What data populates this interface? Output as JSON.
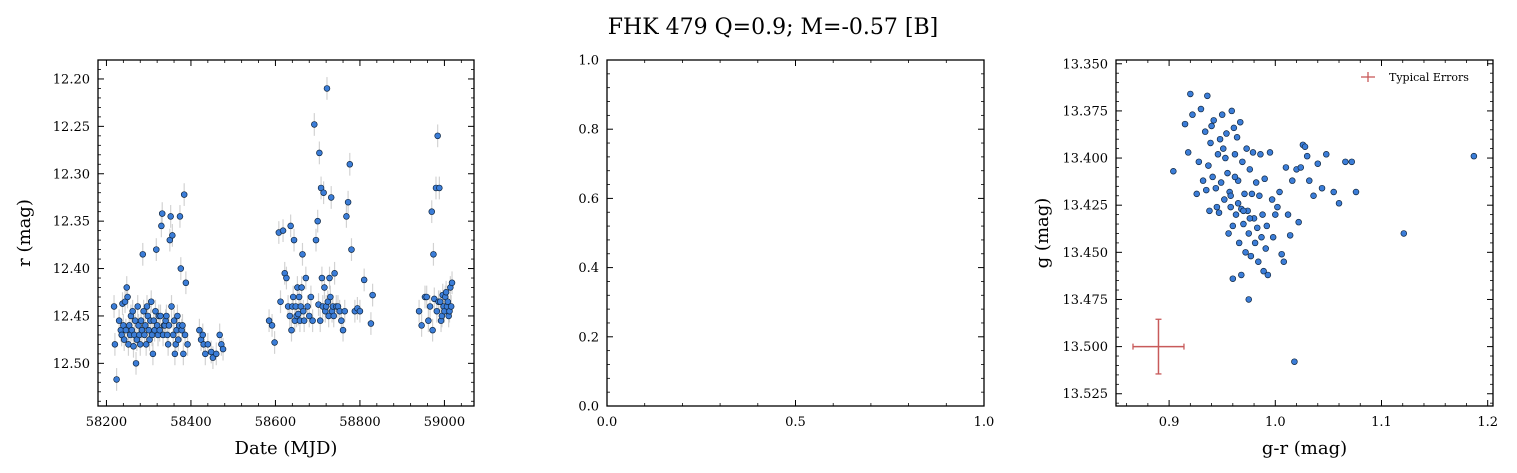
{
  "figure": {
    "title": "FHK 479  Q=0.9; M=-0.57 [B]"
  },
  "colors": {
    "point_fill": "#3b7dd8",
    "point_edge": "#10263f",
    "errorbar": "#c8c8c8",
    "typical_error": "#c85a5a",
    "axis": "#000000"
  },
  "chart_data": [
    {
      "id": "lightcurve",
      "type": "scatter",
      "title": "",
      "xlabel": "Date (MJD)",
      "ylabel": "r (mag)",
      "xlim": [
        58180,
        59070
      ],
      "ylim": [
        12.545,
        12.18
      ],
      "y_inverted": true,
      "xticks": [
        58200,
        58400,
        58600,
        58800,
        59000
      ],
      "yticks": [
        12.2,
        12.25,
        12.3,
        12.35,
        12.4,
        12.45,
        12.5
      ],
      "xtick_labels": [
        "58200",
        "58400",
        "58600",
        "58800",
        "59000"
      ],
      "ytick_labels": [
        "12.20",
        "12.25",
        "12.30",
        "12.35",
        "12.40",
        "12.45",
        "12.50"
      ],
      "error_bar_mag": 0.012,
      "points": [
        [
          58218,
          12.44
        ],
        [
          58220,
          12.48
        ],
        [
          58224,
          12.517
        ],
        [
          58230,
          12.455
        ],
        [
          58234,
          12.465
        ],
        [
          58236,
          12.47
        ],
        [
          58238,
          12.437
        ],
        [
          58240,
          12.46
        ],
        [
          58242,
          12.475
        ],
        [
          58244,
          12.435
        ],
        [
          58246,
          12.465
        ],
        [
          58248,
          12.42
        ],
        [
          58250,
          12.43
        ],
        [
          58252,
          12.48
        ],
        [
          58254,
          12.46
        ],
        [
          58256,
          12.47
        ],
        [
          58258,
          12.45
        ],
        [
          58260,
          12.465
        ],
        [
          58262,
          12.445
        ],
        [
          58264,
          12.482
        ],
        [
          58266,
          12.47
        ],
        [
          58268,
          12.455
        ],
        [
          58270,
          12.5
        ],
        [
          58272,
          12.475
        ],
        [
          58274,
          12.44
        ],
        [
          58276,
          12.46
        ],
        [
          58278,
          12.47
        ],
        [
          58280,
          12.48
        ],
        [
          58282,
          12.455
        ],
        [
          58284,
          12.465
        ],
        [
          58286,
          12.385
        ],
        [
          58288,
          12.445
        ],
        [
          58290,
          12.47
        ],
        [
          58292,
          12.46
        ],
        [
          58294,
          12.48
        ],
        [
          58296,
          12.44
        ],
        [
          58298,
          12.45
        ],
        [
          58300,
          12.465
        ],
        [
          58302,
          12.475
        ],
        [
          58304,
          12.455
        ],
        [
          58306,
          12.435
        ],
        [
          58308,
          12.47
        ],
        [
          58310,
          12.49
        ],
        [
          58312,
          12.455
        ],
        [
          58314,
          12.465
        ],
        [
          58316,
          12.445
        ],
        [
          58318,
          12.38
        ],
        [
          58320,
          12.46
        ],
        [
          58322,
          12.47
        ],
        [
          58324,
          12.45
        ],
        [
          58326,
          12.465
        ],
        [
          58328,
          12.45
        ],
        [
          58330,
          12.355
        ],
        [
          58332,
          12.342
        ],
        [
          58334,
          12.47
        ],
        [
          58336,
          12.46
        ],
        [
          58338,
          12.46
        ],
        [
          58340,
          12.455
        ],
        [
          58342,
          12.45
        ],
        [
          58344,
          12.47
        ],
        [
          58346,
          12.48
        ],
        [
          58348,
          12.46
        ],
        [
          58350,
          12.37
        ],
        [
          58352,
          12.345
        ],
        [
          58354,
          12.44
        ],
        [
          58356,
          12.365
        ],
        [
          58358,
          12.47
        ],
        [
          58360,
          12.455
        ],
        [
          58362,
          12.49
        ],
        [
          58364,
          12.48
        ],
        [
          58366,
          12.465
        ],
        [
          58368,
          12.45
        ],
        [
          58370,
          12.475
        ],
        [
          58372,
          12.46
        ],
        [
          58374,
          12.345
        ],
        [
          58376,
          12.4
        ],
        [
          58378,
          12.465
        ],
        [
          58380,
          12.46
        ],
        [
          58382,
          12.49
        ],
        [
          58384,
          12.322
        ],
        [
          58386,
          12.47
        ],
        [
          58388,
          12.415
        ],
        [
          58392,
          12.48
        ],
        [
          58420,
          12.465
        ],
        [
          58424,
          12.475
        ],
        [
          58428,
          12.47
        ],
        [
          58430,
          12.48
        ],
        [
          58434,
          12.49
        ],
        [
          58440,
          12.48
        ],
        [
          58448,
          12.488
        ],
        [
          58452,
          12.494
        ],
        [
          58460,
          12.49
        ],
        [
          58468,
          12.47
        ],
        [
          58472,
          12.48
        ],
        [
          58476,
          12.485
        ],
        [
          58585,
          12.455
        ],
        [
          58592,
          12.46
        ],
        [
          58598,
          12.478
        ],
        [
          58608,
          12.362
        ],
        [
          58612,
          12.435
        ],
        [
          58618,
          12.36
        ],
        [
          58622,
          12.405
        ],
        [
          58626,
          12.41
        ],
        [
          58630,
          12.44
        ],
        [
          58634,
          12.45
        ],
        [
          58636,
          12.355
        ],
        [
          58638,
          12.465
        ],
        [
          58640,
          12.44
        ],
        [
          58642,
          12.43
        ],
        [
          58644,
          12.37
        ],
        [
          58646,
          12.455
        ],
        [
          58648,
          12.44
        ],
        [
          58650,
          12.45
        ],
        [
          58652,
          12.42
        ],
        [
          58654,
          12.448
        ],
        [
          58656,
          12.43
        ],
        [
          58658,
          12.455
        ],
        [
          58660,
          12.44
        ],
        [
          58662,
          12.42
        ],
        [
          58664,
          12.385
        ],
        [
          58666,
          12.445
        ],
        [
          58668,
          12.455
        ],
        [
          58672,
          12.41
        ],
        [
          58676,
          12.44
        ],
        [
          58680,
          12.45
        ],
        [
          58684,
          12.43
        ],
        [
          58688,
          12.455
        ],
        [
          58692,
          12.248
        ],
        [
          58696,
          12.37
        ],
        [
          58700,
          12.35
        ],
        [
          58702,
          12.438
        ],
        [
          58704,
          12.278
        ],
        [
          58706,
          12.455
        ],
        [
          58708,
          12.315
        ],
        [
          58710,
          12.41
        ],
        [
          58712,
          12.44
        ],
        [
          58714,
          12.32
        ],
        [
          58716,
          12.42
        ],
        [
          58718,
          12.445
        ],
        [
          58720,
          12.44
        ],
        [
          58722,
          12.21
        ],
        [
          58724,
          12.435
        ],
        [
          58726,
          12.45
        ],
        [
          58728,
          12.41
        ],
        [
          58730,
          12.43
        ],
        [
          58732,
          12.325
        ],
        [
          58734,
          12.445
        ],
        [
          58736,
          12.44
        ],
        [
          58738,
          12.45
        ],
        [
          58740,
          12.405
        ],
        [
          58744,
          12.44
        ],
        [
          58748,
          12.44
        ],
        [
          58752,
          12.445
        ],
        [
          58756,
          12.455
        ],
        [
          58760,
          12.465
        ],
        [
          58764,
          12.445
        ],
        [
          58768,
          12.345
        ],
        [
          58772,
          12.33
        ],
        [
          58776,
          12.29
        ],
        [
          58780,
          12.38
        ],
        [
          58788,
          12.445
        ],
        [
          58794,
          12.442
        ],
        [
          58800,
          12.445
        ],
        [
          58810,
          12.412
        ],
        [
          58826,
          12.458
        ],
        [
          58830,
          12.428
        ],
        [
          58940,
          12.445
        ],
        [
          58946,
          12.46
        ],
        [
          58954,
          12.43
        ],
        [
          58958,
          12.43
        ],
        [
          58962,
          12.455
        ],
        [
          58966,
          12.44
        ],
        [
          58970,
          12.34
        ],
        [
          58972,
          12.465
        ],
        [
          58974,
          12.385
        ],
        [
          58976,
          12.432
        ],
        [
          58980,
          12.315
        ],
        [
          58982,
          12.445
        ],
        [
          58984,
          12.26
        ],
        [
          58986,
          12.435
        ],
        [
          58988,
          12.315
        ],
        [
          58990,
          12.435
        ],
        [
          58992,
          12.455
        ],
        [
          58994,
          12.45
        ],
        [
          58996,
          12.428
        ],
        [
          58998,
          12.44
        ],
        [
          59000,
          12.445
        ],
        [
          59002,
          12.43
        ],
        [
          59004,
          12.425
        ],
        [
          59006,
          12.44
        ],
        [
          59008,
          12.435
        ],
        [
          59010,
          12.45
        ],
        [
          59012,
          12.445
        ],
        [
          59014,
          12.42
        ],
        [
          59016,
          12.44
        ],
        [
          59018,
          12.415
        ]
      ]
    },
    {
      "id": "empty",
      "type": "scatter",
      "xlim": [
        0,
        1
      ],
      "ylim": [
        0,
        1
      ],
      "xticks": [
        0,
        0.5,
        1
      ],
      "yticks": [
        0,
        0.2,
        0.4,
        0.6,
        0.8,
        1
      ],
      "xtick_labels": [
        "0.0",
        "0.5",
        "1.0"
      ],
      "ytick_labels": [
        "0.0",
        "0.2",
        "0.4",
        "0.6",
        "0.8",
        "1.0"
      ],
      "points": []
    },
    {
      "id": "colormag",
      "type": "scatter",
      "xlabel": "g-r (mag)",
      "ylabel": "g (mag)",
      "xlim": [
        0.85,
        1.205
      ],
      "ylim": [
        13.5315,
        13.348
      ],
      "y_inverted": true,
      "xticks": [
        0.9,
        1.0,
        1.1,
        1.2
      ],
      "yticks": [
        13.35,
        13.375,
        13.4,
        13.425,
        13.45,
        13.475,
        13.5,
        13.525
      ],
      "xtick_labels": [
        "0.9",
        "1.0",
        "1.1",
        "1.2"
      ],
      "ytick_labels": [
        "13.350",
        "13.375",
        "13.400",
        "13.425",
        "13.450",
        "13.475",
        "13.500",
        "13.525"
      ],
      "legend": {
        "label": "Typical Errors",
        "position": "upper right"
      },
      "typical_error": {
        "x": 0.89,
        "y": 13.5,
        "xerr": 0.024,
        "yerr": 0.0145
      },
      "points": [
        [
          0.904,
          13.407
        ],
        [
          0.915,
          13.382
        ],
        [
          0.918,
          13.397
        ],
        [
          0.92,
          13.366
        ],
        [
          0.922,
          13.377
        ],
        [
          0.926,
          13.419
        ],
        [
          0.928,
          13.402
        ],
        [
          0.93,
          13.374
        ],
        [
          0.932,
          13.412
        ],
        [
          0.934,
          13.386
        ],
        [
          0.935,
          13.417
        ],
        [
          0.936,
          13.367
        ],
        [
          0.937,
          13.404
        ],
        [
          0.938,
          13.428
        ],
        [
          0.939,
          13.392
        ],
        [
          0.94,
          13.383
        ],
        [
          0.941,
          13.41
        ],
        [
          0.942,
          13.38
        ],
        [
          0.944,
          13.416
        ],
        [
          0.945,
          13.426
        ],
        [
          0.946,
          13.398
        ],
        [
          0.947,
          13.429
        ],
        [
          0.948,
          13.39
        ],
        [
          0.949,
          13.413
        ],
        [
          0.95,
          13.377
        ],
        [
          0.951,
          13.395
        ],
        [
          0.952,
          13.422
        ],
        [
          0.953,
          13.4
        ],
        [
          0.954,
          13.387
        ],
        [
          0.955,
          13.408
        ],
        [
          0.956,
          13.44
        ],
        [
          0.957,
          13.418
        ],
        [
          0.958,
          13.426
        ],
        [
          0.959,
          13.375
        ],
        [
          0.96,
          13.436
        ],
        [
          0.961,
          13.384
        ],
        [
          0.962,
          13.398
        ],
        [
          0.963,
          13.43
        ],
        [
          0.964,
          13.389
        ],
        [
          0.965,
          13.412
        ],
        [
          0.966,
          13.445
        ],
        [
          0.967,
          13.381
        ],
        [
          0.968,
          13.427
        ],
        [
          0.969,
          13.402
        ],
        [
          0.97,
          13.435
        ],
        [
          0.971,
          13.419
        ],
        [
          0.972,
          13.45
        ],
        [
          0.973,
          13.395
        ],
        [
          0.974,
          13.428
        ],
        [
          0.975,
          13.44
        ],
        [
          0.976,
          13.406
        ],
        [
          0.977,
          13.452
        ],
        [
          0.978,
          13.419
        ],
        [
          0.979,
          13.397
        ],
        [
          0.98,
          13.432
        ],
        [
          0.981,
          13.445
        ],
        [
          0.982,
          13.413
        ],
        [
          0.983,
          13.437
        ],
        [
          0.984,
          13.455
        ],
        [
          0.985,
          13.42
        ],
        [
          0.986,
          13.398
        ],
        [
          0.987,
          13.442
        ],
        [
          0.988,
          13.43
        ],
        [
          0.989,
          13.46
        ],
        [
          0.99,
          13.411
        ],
        [
          0.991,
          13.448
        ],
        [
          0.992,
          13.436
        ],
        [
          0.993,
          13.462
        ],
        [
          0.995,
          13.397
        ],
        [
          0.997,
          13.422
        ],
        [
          0.998,
          13.442
        ],
        [
          1.0,
          13.43
        ],
        [
          1.002,
          13.426
        ],
        [
          1.004,
          13.418
        ],
        [
          1.006,
          13.451
        ],
        [
          1.008,
          13.455
        ],
        [
          1.01,
          13.405
        ],
        [
          1.012,
          13.43
        ],
        [
          1.014,
          13.441
        ],
        [
          1.016,
          13.412
        ],
        [
          1.018,
          13.508
        ],
        [
          1.02,
          13.406
        ],
        [
          1.022,
          13.434
        ],
        [
          1.024,
          13.405
        ],
        [
          1.026,
          13.393
        ],
        [
          1.028,
          13.394
        ],
        [
          1.03,
          13.399
        ],
        [
          1.032,
          13.412
        ],
        [
          1.036,
          13.42
        ],
        [
          1.04,
          13.403
        ],
        [
          1.044,
          13.416
        ],
        [
          1.048,
          13.398
        ],
        [
          1.055,
          13.418
        ],
        [
          1.06,
          13.424
        ],
        [
          1.066,
          13.402
        ],
        [
          1.072,
          13.402
        ],
        [
          1.076,
          13.418
        ],
        [
          1.121,
          13.44
        ],
        [
          1.187,
          13.399
        ],
        [
          0.965,
          13.424
        ],
        [
          0.968,
          13.462
        ],
        [
          0.975,
          13.475
        ],
        [
          0.96,
          13.464
        ],
        [
          0.958,
          13.42
        ],
        [
          0.962,
          13.41
        ],
        [
          0.97,
          13.428
        ],
        [
          0.976,
          13.432
        ]
      ]
    }
  ]
}
